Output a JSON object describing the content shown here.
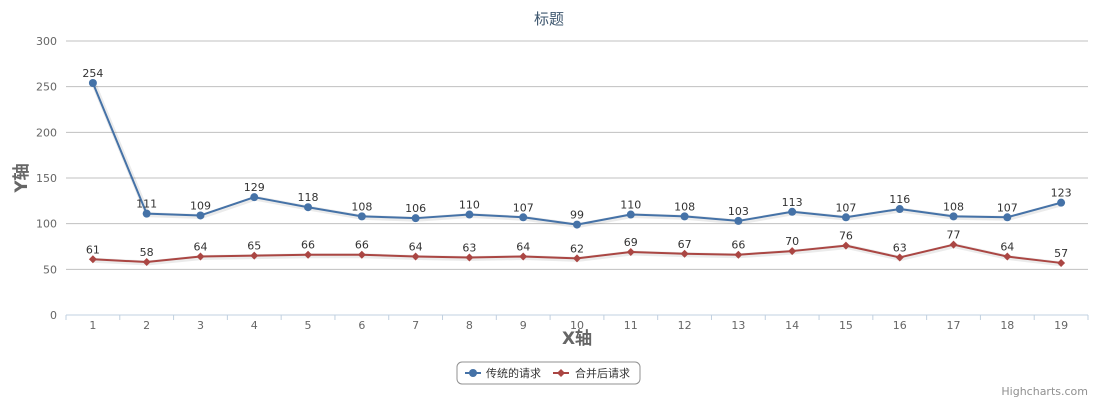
{
  "chart_data": {
    "type": "line",
    "title": "标题",
    "xlabel": "X轴",
    "ylabel": "Y轴",
    "categories": [
      "1",
      "2",
      "3",
      "4",
      "5",
      "6",
      "7",
      "8",
      "9",
      "10",
      "11",
      "12",
      "13",
      "14",
      "15",
      "16",
      "17",
      "18",
      "19"
    ],
    "ylim": [
      0,
      300
    ],
    "yticks": [
      0,
      50,
      100,
      150,
      200,
      250,
      300
    ],
    "grid": true,
    "legend_position": "bottom-center",
    "series": [
      {
        "name": "传统的请求",
        "color": "#4572A7",
        "marker": "circle",
        "values": [
          254,
          111,
          109,
          129,
          118,
          108,
          106,
          110,
          107,
          99,
          110,
          108,
          103,
          113,
          107,
          116,
          108,
          107,
          123
        ]
      },
      {
        "name": "合并后请求",
        "color": "#AA4643",
        "marker": "diamond",
        "values": [
          61,
          58,
          64,
          65,
          66,
          66,
          64,
          63,
          64,
          62,
          69,
          67,
          66,
          70,
          76,
          63,
          77,
          64,
          57
        ]
      }
    ]
  },
  "credits": "Highcharts.com"
}
